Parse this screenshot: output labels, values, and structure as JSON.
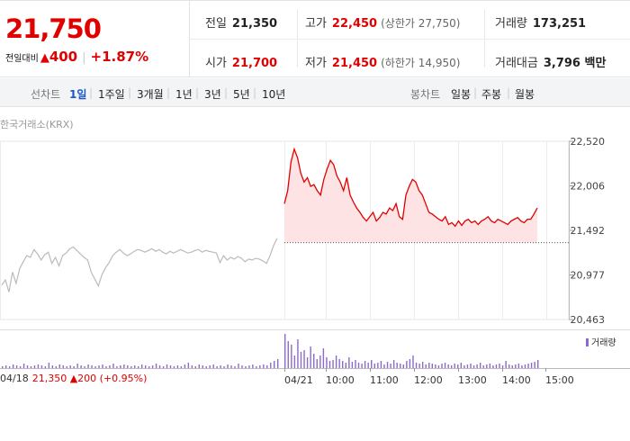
{
  "summary": {
    "price": "21,750",
    "change_label": "전일대비",
    "change_arrow": "▲",
    "change_value": "400",
    "change_pct": "+1.87%",
    "prev_close": {
      "label": "전일",
      "value": "21,350"
    },
    "high": {
      "label": "고가",
      "value": "22,450",
      "limit_label": "상한가",
      "limit_value": "27,750"
    },
    "volume": {
      "label": "거래량",
      "value": "173,251"
    },
    "open": {
      "label": "시가",
      "value": "21,700"
    },
    "low": {
      "label": "저가",
      "value": "21,450",
      "limit_label": "하한가",
      "limit_value": "14,950"
    },
    "amount": {
      "label": "거래대금",
      "value": "3,796 백만"
    }
  },
  "toolbar": {
    "line_chart_label": "선차트",
    "periods": [
      "1일",
      "1주일",
      "3개월",
      "1년",
      "3년",
      "5년",
      "10년"
    ],
    "active_period": "1일",
    "candle_chart_label": "봉차트",
    "candle_periods": [
      "일봉",
      "주봉",
      "월봉"
    ]
  },
  "source": "한국거래소(KRX)",
  "colors": {
    "up": "#e10000",
    "prev_line": "#bbbbbb",
    "volume": "#8b6bc7",
    "area": "#fde3e3"
  },
  "chart_data": {
    "type": "line",
    "y_ticks": [
      "22,520",
      "22,006",
      "21,492",
      "20,977",
      "20,463"
    ],
    "ylim": [
      20463,
      22520
    ],
    "prev_close": 21350,
    "x_ticks": [
      "04/21",
      "10:00",
      "11:00",
      "12:00",
      "13:00",
      "14:00",
      "15:00"
    ],
    "prev_day_label": "04/18",
    "prev_day_info": {
      "close": "21,350",
      "arrow": "▲",
      "change": "200",
      "pct": "(+0.95%)"
    },
    "series": [
      {
        "name": "",
        "kind": "previous_day",
        "values": [
          20860,
          20920,
          20780,
          21010,
          20880,
          21050,
          21130,
          21200,
          21180,
          21270,
          21220,
          21150,
          21210,
          21240,
          21110,
          21180,
          21080,
          21200,
          21230,
          21280,
          21300,
          21260,
          21220,
          21180,
          21150,
          21010,
          20930,
          20850,
          20980,
          21060,
          21120,
          21200,
          21240,
          21270,
          21230,
          21200,
          21220,
          21250,
          21270,
          21260,
          21240,
          21260,
          21280,
          21250,
          21270,
          21240,
          21220,
          21250,
          21230,
          21250,
          21270,
          21250,
          21230,
          21240,
          21260,
          21270,
          21240,
          21260,
          21250,
          21240,
          21230,
          21120,
          21200,
          21150,
          21180,
          21160,
          21190,
          21170,
          21130,
          21160,
          21150,
          21170,
          21160,
          21140,
          21110,
          21200,
          21320,
          21400
        ]
      },
      {
        "name": "",
        "kind": "today",
        "values": [
          21800,
          21950,
          22280,
          22430,
          22330,
          22150,
          22050,
          22100,
          22000,
          22020,
          21950,
          21900,
          22080,
          22200,
          22300,
          22250,
          22120,
          22050,
          21950,
          22100,
          21900,
          21820,
          21750,
          21700,
          21640,
          21600,
          21650,
          21700,
          21600,
          21640,
          21700,
          21680,
          21750,
          21720,
          21800,
          21650,
          21620,
          21900,
          22000,
          22080,
          22050,
          21950,
          21900,
          21800,
          21700,
          21680,
          21650,
          21620,
          21600,
          21650,
          21560,
          21580,
          21540,
          21600,
          21550,
          21600,
          21620,
          21580,
          21600,
          21560,
          21600,
          21620,
          21650,
          21600,
          21580,
          21620,
          21600,
          21580,
          21560,
          21600,
          21620,
          21640,
          21600,
          21580,
          21620,
          21620,
          21680,
          21750
        ]
      }
    ],
    "volume": {
      "name": "거래량",
      "values": [
        2,
        3,
        2,
        4,
        3,
        2,
        5,
        3,
        2,
        3,
        4,
        3,
        2,
        6,
        3,
        2,
        4,
        3,
        2,
        3,
        2,
        5,
        3,
        2,
        4,
        3,
        2,
        3,
        4,
        2,
        3,
        5,
        2,
        3,
        4,
        3,
        2,
        3,
        2,
        4,
        3,
        2,
        3,
        5,
        3,
        2,
        4,
        3,
        2,
        3,
        2,
        4,
        6,
        3,
        2,
        4,
        3,
        2,
        3,
        4,
        2,
        3,
        2,
        4,
        3,
        2,
        5,
        3,
        2,
        3,
        4,
        2,
        3,
        4,
        3,
        6,
        8,
        10,
        38,
        30,
        26,
        14,
        32,
        18,
        20,
        12,
        24,
        16,
        10,
        14,
        22,
        12,
        8,
        9,
        14,
        10,
        8,
        6,
        12,
        7,
        9,
        6,
        5,
        8,
        6,
        9,
        5,
        6,
        8,
        4,
        7,
        5,
        9,
        6,
        5,
        4,
        8,
        10,
        14,
        6,
        5,
        7,
        4,
        6,
        5,
        4,
        3,
        5,
        6,
        4,
        3,
        5,
        4,
        6,
        3,
        4,
        5,
        3,
        4,
        6,
        3,
        4,
        5,
        3,
        4,
        5,
        3,
        8,
        4,
        3,
        4,
        5,
        3,
        4,
        5,
        6,
        7,
        9
      ]
    }
  }
}
